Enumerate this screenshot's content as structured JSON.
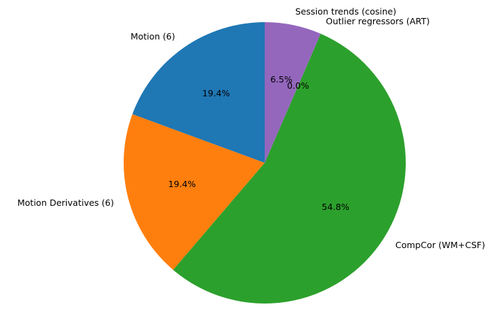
{
  "chart_data": {
    "type": "pie",
    "start_angle": "top, counter-clockwise",
    "slices": [
      {
        "label": "Motion (6)",
        "value": 19.4,
        "pct_label": "19.4%",
        "color": "#1f77b4"
      },
      {
        "label": "Motion Derivatives (6)",
        "value": 19.4,
        "pct_label": "19.4%",
        "color": "#ff7f0e"
      },
      {
        "label": "CompCor (WM+CSF)",
        "value": 54.8,
        "pct_label": "54.8%",
        "color": "#2ca02c"
      },
      {
        "label": "Outlier regressors (ART)",
        "value": 0.0,
        "pct_label": "0.0%",
        "color": "#d62728"
      },
      {
        "label": "Session trends (cosine)",
        "value": 6.5,
        "pct_label": "6.5%",
        "color": "#9467bd"
      }
    ]
  }
}
